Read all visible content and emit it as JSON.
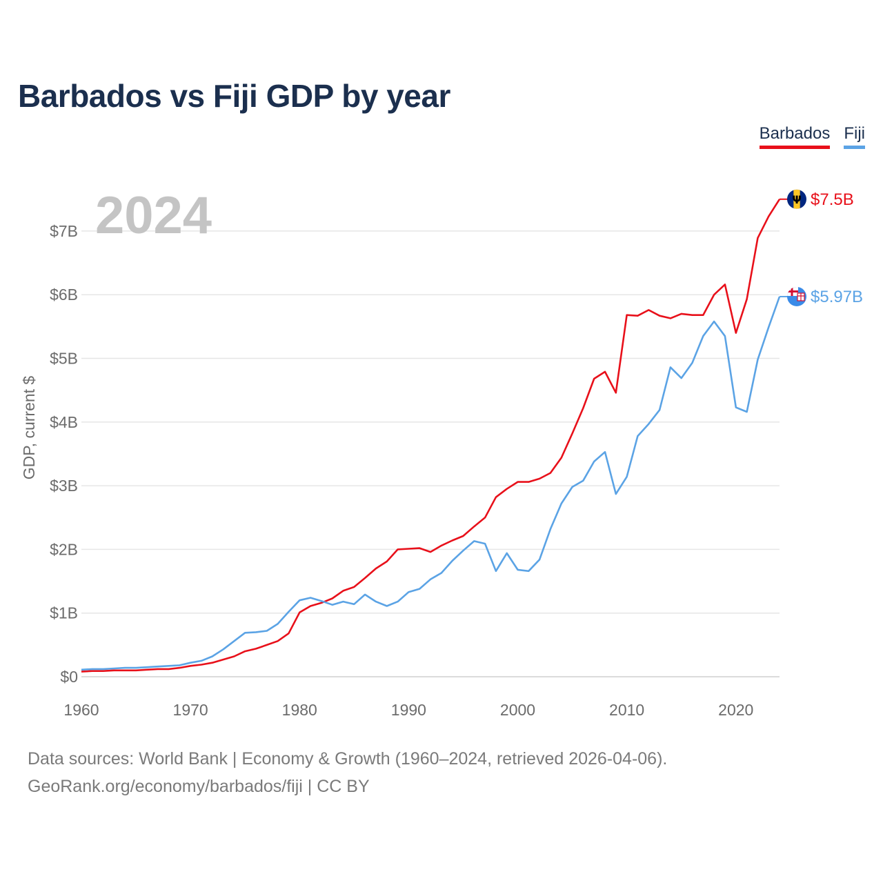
{
  "title": "Barbados vs Fiji GDP by year",
  "legend": [
    {
      "name": "Barbados",
      "color": "#e8101a"
    },
    {
      "name": "Fiji",
      "color": "#5ba3e5"
    }
  ],
  "footer": {
    "line1": "Data sources: World Bank | Economy & Growth (1960–2024, retrieved 2026-04-06).",
    "line2": "GeoRank.org/economy/barbados/fiji | CC BY"
  },
  "chart_data": {
    "type": "line",
    "title": "Barbados vs Fiji GDP by year",
    "ylabel": "GDP, current $",
    "xlabel": "",
    "year_label": "2024",
    "xlim": [
      1960,
      2024
    ],
    "ylim": [
      0,
      7.5
    ],
    "x_ticks": [
      1960,
      1970,
      1980,
      1990,
      2000,
      2010,
      2020
    ],
    "y_ticks": [
      0,
      1,
      2,
      3,
      4,
      5,
      6,
      7
    ],
    "y_tick_labels": [
      "$0",
      "$1B",
      "$2B",
      "$3B",
      "$4B",
      "$5B",
      "$6B",
      "$7B"
    ],
    "grid": true,
    "x": [
      1960,
      1961,
      1962,
      1963,
      1964,
      1965,
      1966,
      1967,
      1968,
      1969,
      1970,
      1971,
      1972,
      1973,
      1974,
      1975,
      1976,
      1977,
      1978,
      1979,
      1980,
      1981,
      1982,
      1983,
      1984,
      1985,
      1986,
      1987,
      1988,
      1989,
      1990,
      1991,
      1992,
      1993,
      1994,
      1995,
      1996,
      1997,
      1998,
      1999,
      2000,
      2001,
      2002,
      2003,
      2004,
      2005,
      2006,
      2007,
      2008,
      2009,
      2010,
      2011,
      2012,
      2013,
      2014,
      2015,
      2016,
      2017,
      2018,
      2019,
      2020,
      2021,
      2022,
      2023,
      2024
    ],
    "series": [
      {
        "name": "Barbados",
        "color": "#e8101a",
        "end_label": "$7.5B",
        "flag": "barbados-flag-icon",
        "values": [
          0.08,
          0.09,
          0.09,
          0.1,
          0.1,
          0.1,
          0.11,
          0.12,
          0.12,
          0.14,
          0.17,
          0.19,
          0.22,
          0.27,
          0.32,
          0.4,
          0.44,
          0.5,
          0.56,
          0.68,
          1.01,
          1.11,
          1.16,
          1.23,
          1.35,
          1.41,
          1.55,
          1.7,
          1.81,
          2.0,
          2.01,
          2.02,
          1.96,
          2.06,
          2.14,
          2.21,
          2.36,
          2.5,
          2.82,
          2.95,
          3.06,
          3.06,
          3.11,
          3.2,
          3.44,
          3.82,
          4.22,
          4.68,
          4.79,
          4.46,
          5.68,
          5.67,
          5.76,
          5.67,
          5.63,
          5.7,
          5.68,
          5.68,
          6.0,
          6.16,
          5.4,
          5.93,
          6.89,
          7.23,
          7.5
        ]
      },
      {
        "name": "Fiji",
        "color": "#5ba3e5",
        "end_label": "$5.97B",
        "flag": "fiji-flag-icon",
        "values": [
          0.11,
          0.12,
          0.12,
          0.13,
          0.14,
          0.14,
          0.15,
          0.16,
          0.17,
          0.18,
          0.22,
          0.25,
          0.32,
          0.43,
          0.56,
          0.69,
          0.7,
          0.72,
          0.83,
          1.02,
          1.2,
          1.24,
          1.19,
          1.13,
          1.18,
          1.14,
          1.29,
          1.18,
          1.11,
          1.18,
          1.33,
          1.38,
          1.53,
          1.63,
          1.82,
          1.98,
          2.13,
          2.09,
          1.66,
          1.94,
          1.68,
          1.66,
          1.84,
          2.32,
          2.72,
          2.98,
          3.08,
          3.38,
          3.53,
          2.87,
          3.14,
          3.78,
          3.97,
          4.19,
          4.86,
          4.69,
          4.93,
          5.35,
          5.58,
          5.35,
          4.23,
          4.16,
          4.98,
          5.49,
          5.97
        ]
      }
    ]
  }
}
